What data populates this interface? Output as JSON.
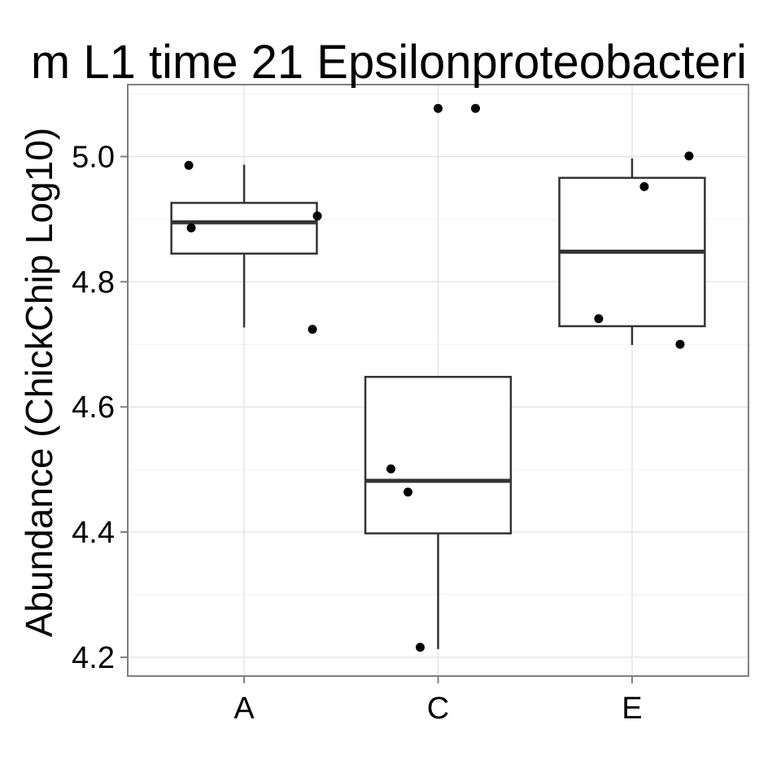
{
  "chart_data": {
    "type": "boxplot",
    "title": "m L1 time 21 Epsilonproteobacteri",
    "xlabel": "",
    "ylabel": "Abundance (ChickChip Log10)",
    "ylim": [
      4.17,
      5.115
    ],
    "yticks": [
      "4.2",
      "4.4",
      "4.6",
      "4.8",
      "5.0"
    ],
    "categories": [
      "A",
      "C",
      "E"
    ],
    "boxes": [
      {
        "category": "A",
        "whisker_low": 4.727,
        "q1": 4.845,
        "median": 4.895,
        "q3": 4.926,
        "whisker_high": 4.987
      },
      {
        "category": "C",
        "whisker_low": 4.213,
        "q1": 4.398,
        "median": 4.482,
        "q3": 4.648,
        "whisker_high": 4.648
      },
      {
        "category": "E",
        "whisker_low": 4.699,
        "q1": 4.729,
        "median": 4.848,
        "q3": 4.966,
        "whisker_high": 4.997
      }
    ],
    "points": [
      {
        "category": "A",
        "y": 4.986
      },
      {
        "category": "A",
        "y": 4.886
      },
      {
        "category": "A",
        "y": 4.905
      },
      {
        "category": "A",
        "y": 4.724
      },
      {
        "category": "C",
        "y": 5.077
      },
      {
        "category": "C",
        "y": 5.077
      },
      {
        "category": "C",
        "y": 4.501
      },
      {
        "category": "C",
        "y": 4.464
      },
      {
        "category": "C",
        "y": 4.216
      },
      {
        "category": "E",
        "y": 5.001
      },
      {
        "category": "E",
        "y": 4.952
      },
      {
        "category": "E",
        "y": 4.741
      },
      {
        "category": "E",
        "y": 4.7
      }
    ],
    "grid": true,
    "legend": "none"
  }
}
